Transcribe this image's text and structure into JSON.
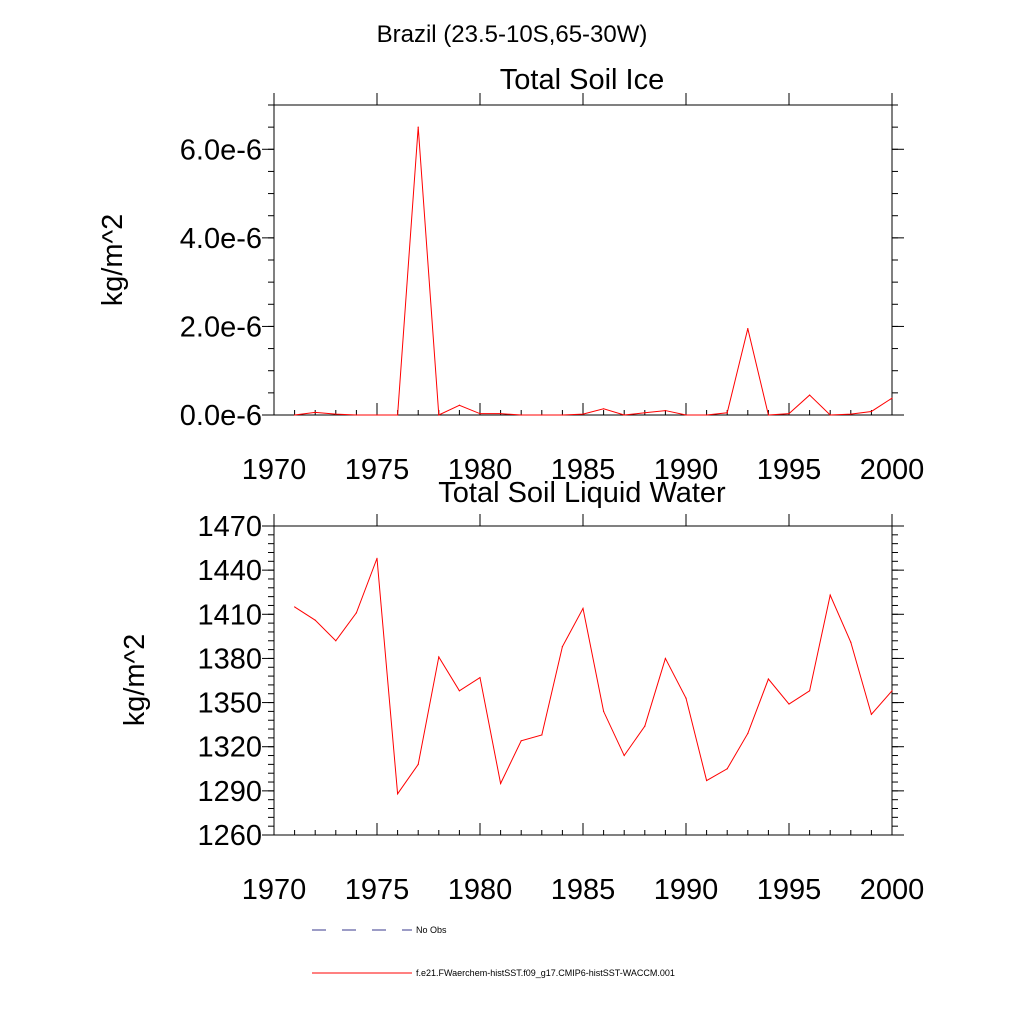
{
  "figure": {
    "suptitle": "Brazil (23.5-10S,65-30W)"
  },
  "legend": [
    {
      "label": "No Obs",
      "style": "dashed",
      "color": "#3a3a8c"
    },
    {
      "label": "f.e21.FWaerchem-histSST.f09_g17.CMIP6-histSST-WACCM.001",
      "style": "solid",
      "color": "#ff0000"
    }
  ],
  "chart_data": [
    {
      "type": "line",
      "title": "Total Soil Ice",
      "xlabel": "",
      "ylabel": "kg/m^2",
      "xlim": [
        1970,
        2000
      ],
      "ylim": [
        0,
        7e-06
      ],
      "xticks": [
        1970,
        1975,
        1980,
        1985,
        1990,
        1995,
        2000
      ],
      "xtick_labels": [
        "1970",
        "1975",
        "1980",
        "1985",
        "1990",
        "1995",
        "2000"
      ],
      "yticks": [
        0,
        2e-06,
        4e-06,
        6e-06
      ],
      "ytick_labels": [
        "0.0e-6",
        "2.0e-6",
        "4.0e-6",
        "6.0e-6"
      ],
      "yminor_step": 5e-07,
      "series": [
        {
          "color": "#ff0000",
          "x": [
            1971,
            1972,
            1973,
            1974,
            1975,
            1976,
            1977,
            1978,
            1979,
            1980,
            1981,
            1982,
            1983,
            1984,
            1985,
            1986,
            1987,
            1988,
            1989,
            1990,
            1991,
            1992,
            1993,
            1994,
            1995,
            1996,
            1997,
            1998,
            1999,
            2000
          ],
          "values": [
            0,
            6e-08,
            2e-08,
            0,
            0,
            0,
            6.5e-06,
            0,
            2.2e-07,
            3e-08,
            3e-08,
            0,
            0,
            0,
            2e-08,
            1.4e-07,
            0,
            5e-08,
            1e-07,
            0,
            0,
            5e-08,
            1.95e-06,
            0,
            3e-08,
            4.5e-07,
            0,
            2e-08,
            8e-08,
            3.8e-07
          ]
        }
      ]
    },
    {
      "type": "line",
      "title": "Total Soil Liquid Water",
      "xlabel": "",
      "ylabel": "kg/m^2",
      "xlim": [
        1970,
        2000
      ],
      "ylim": [
        1260,
        1470
      ],
      "xticks": [
        1970,
        1975,
        1980,
        1985,
        1990,
        1995,
        2000
      ],
      "xtick_labels": [
        "1970",
        "1975",
        "1980",
        "1985",
        "1990",
        "1995",
        "2000"
      ],
      "yticks": [
        1260,
        1290,
        1320,
        1350,
        1380,
        1410,
        1440,
        1470
      ],
      "ytick_labels": [
        "1260",
        "1290",
        "1320",
        "1350",
        "1380",
        "1410",
        "1440",
        "1470"
      ],
      "yminor_step": 6,
      "series": [
        {
          "color": "#ff0000",
          "x": [
            1971,
            1972,
            1973,
            1974,
            1975,
            1976,
            1977,
            1978,
            1979,
            1980,
            1981,
            1982,
            1983,
            1984,
            1985,
            1986,
            1987,
            1988,
            1989,
            1990,
            1991,
            1992,
            1993,
            1994,
            1995,
            1996,
            1997,
            1998,
            1999,
            2000
          ],
          "values": [
            1415,
            1406,
            1392,
            1411,
            1448,
            1288,
            1308,
            1381,
            1358,
            1367,
            1295,
            1324,
            1328,
            1388,
            1414,
            1344,
            1314,
            1334,
            1380,
            1353,
            1297,
            1305,
            1329,
            1366,
            1349,
            1358,
            1423,
            1391,
            1342,
            1358
          ]
        }
      ]
    }
  ]
}
